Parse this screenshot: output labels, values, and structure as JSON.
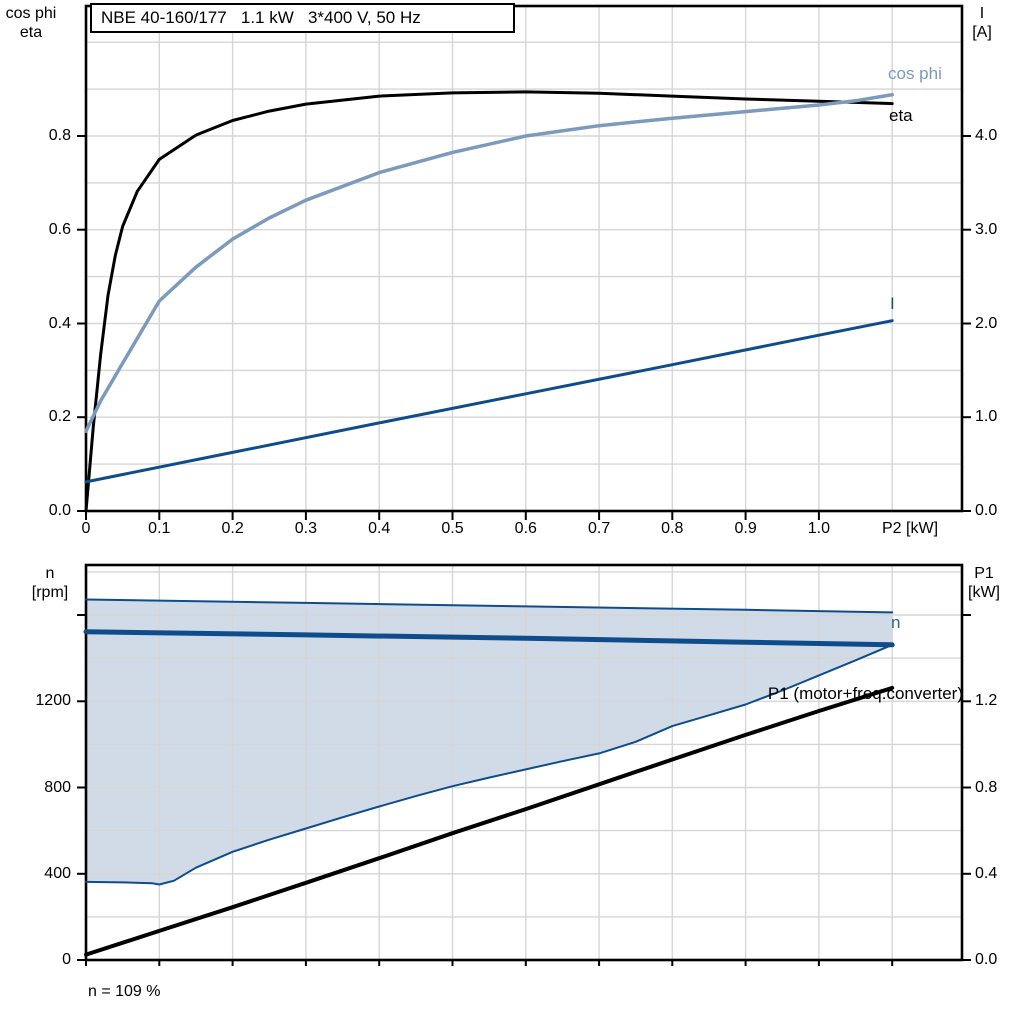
{
  "labels": {
    "left_axis_top_line1": "cos phi",
    "left_axis_top_line2": "eta",
    "right_axis_top_line1": "I",
    "right_axis_top_line2": "[A]",
    "x_axis_unit": "P2 [kW]",
    "bottom_left_line1": "n",
    "bottom_left_line2": "[rpm]",
    "bottom_right_line1": "P1",
    "bottom_right_line2": "[kW]",
    "curve_cos_phi": "cos phi",
    "curve_eta": "eta",
    "curve_I": "I",
    "curve_n": "n",
    "curve_p1": "P1 (motor+freq.converter)",
    "annotation": "n = 109 %"
  },
  "chart_data": [
    {
      "id": "motor",
      "type": "line",
      "title": "NBE 40-160/177   1.1 kW   3*400 V, 50 Hz",
      "grid_color": "#d6d6d6",
      "frame_color": "#000000",
      "x_axis": {
        "label": "P2 [kW]",
        "min": 0,
        "max": 1.1952,
        "grid_step": 0.1,
        "grid_until": 1.1,
        "ticks": [
          [
            0,
            "0"
          ],
          [
            0.1,
            "0.1"
          ],
          [
            0.2,
            "0.2"
          ],
          [
            0.3,
            "0.3"
          ],
          [
            0.4,
            "0.4"
          ],
          [
            0.5,
            "0.5"
          ],
          [
            0.6,
            "0.6"
          ],
          [
            0.7,
            "0.7"
          ],
          [
            0.8,
            "0.8"
          ],
          [
            0.9,
            "0.9"
          ],
          [
            1.0,
            "1.0"
          ]
        ]
      },
      "y_left": {
        "label": "cos phi / eta",
        "min": 0,
        "max": 1.0773,
        "grid_step": 0.1,
        "grid_until": 1.0,
        "ticks": [
          [
            0,
            "0.0"
          ],
          [
            0.2,
            "0.2"
          ],
          [
            0.4,
            "0.4"
          ],
          [
            0.6,
            "0.6"
          ],
          [
            0.8,
            "0.8"
          ]
        ],
        "extra_ticks": []
      },
      "y_right": {
        "label": "I [A]",
        "min": 0,
        "max": 5.3865,
        "ticks": [
          [
            0,
            "0.0"
          ],
          [
            1,
            "1.0"
          ],
          [
            2,
            "2.0"
          ],
          [
            3,
            "3.0"
          ],
          [
            4,
            "4.0"
          ]
        ],
        "extra_ticks": []
      },
      "series": [
        {
          "name": "eta",
          "axis": "left",
          "color": "#000000",
          "width": 3,
          "points": [
            [
              0,
              0
            ],
            [
              0.01,
              0.18
            ],
            [
              0.02,
              0.335
            ],
            [
              0.03,
              0.46
            ],
            [
              0.04,
              0.545
            ],
            [
              0.05,
              0.607
            ],
            [
              0.07,
              0.682
            ],
            [
              0.1,
              0.75
            ],
            [
              0.15,
              0.802
            ],
            [
              0.2,
              0.833
            ],
            [
              0.25,
              0.853
            ],
            [
              0.3,
              0.868
            ],
            [
              0.4,
              0.885
            ],
            [
              0.5,
              0.892
            ],
            [
              0.6,
              0.894
            ],
            [
              0.7,
              0.891
            ],
            [
              0.8,
              0.885
            ],
            [
              0.9,
              0.879
            ],
            [
              1.0,
              0.874
            ],
            [
              1.1,
              0.869
            ]
          ]
        },
        {
          "name": "cos phi",
          "axis": "left",
          "color": "#7b9abc",
          "width": 3.5,
          "points": [
            [
              0,
              0.17
            ],
            [
              0.02,
              0.235
            ],
            [
              0.05,
              0.315
            ],
            [
              0.1,
              0.448
            ],
            [
              0.15,
              0.52
            ],
            [
              0.2,
              0.58
            ],
            [
              0.25,
              0.625
            ],
            [
              0.3,
              0.663
            ],
            [
              0.4,
              0.722
            ],
            [
              0.5,
              0.765
            ],
            [
              0.6,
              0.8
            ],
            [
              0.7,
              0.822
            ],
            [
              0.8,
              0.838
            ],
            [
              0.9,
              0.852
            ],
            [
              1.0,
              0.866
            ],
            [
              1.05,
              0.875
            ],
            [
              1.1,
              0.888
            ]
          ]
        },
        {
          "name": "I",
          "axis": "right",
          "color": "#0f4c8b",
          "width": 3,
          "points": [
            [
              0,
              0.31
            ],
            [
              0.2,
              0.625
            ],
            [
              0.4,
              0.94
            ],
            [
              0.6,
              1.25
            ],
            [
              0.8,
              1.56
            ],
            [
              1.0,
              1.875
            ],
            [
              1.1,
              2.03
            ]
          ]
        }
      ]
    },
    {
      "id": "speed",
      "type": "line+area",
      "title": "",
      "grid_color": "#d6d6d6",
      "frame_color": "#000000",
      "x_axis": {
        "label": "",
        "min": 0,
        "max": 1.1952,
        "grid_step": 0.1,
        "grid_until": 1.1,
        "ticks": [
          [
            0,
            ""
          ],
          [
            0.1,
            ""
          ],
          [
            0.2,
            ""
          ],
          [
            0.3,
            ""
          ],
          [
            0.4,
            ""
          ],
          [
            0.5,
            ""
          ],
          [
            0.6,
            ""
          ],
          [
            0.7,
            ""
          ],
          [
            0.8,
            ""
          ],
          [
            0.9,
            ""
          ],
          [
            1.0,
            ""
          ],
          [
            1.1,
            ""
          ]
        ]
      },
      "y_left": {
        "label": "n [rpm]",
        "min": 0,
        "max": 1832,
        "grid_step": 200,
        "grid_until": 1800,
        "ticks": [
          [
            0,
            "0"
          ],
          [
            400,
            "400"
          ],
          [
            800,
            "800"
          ],
          [
            1200,
            "1200"
          ]
        ],
        "extra_ticks": [
          1600
        ]
      },
      "y_right": {
        "label": "P1 [kW]",
        "min": 0,
        "max": 1.832,
        "ticks": [
          [
            0,
            "0.0"
          ],
          [
            0.4,
            "0.4"
          ],
          [
            0.8,
            "0.8"
          ],
          [
            1.2,
            "1.2"
          ]
        ],
        "extra_ticks": [
          1.6
        ]
      },
      "area": {
        "name": "speed range",
        "fill": "rgba(196,210,225,0.8)",
        "upper": "n max",
        "lower": "n min"
      },
      "annotation": "n = 109 %",
      "series": [
        {
          "name": "n max",
          "axis": "left",
          "color": "#0f4c8b",
          "width": 2,
          "points": [
            [
              0,
              1672
            ],
            [
              0.3,
              1656
            ],
            [
              0.6,
              1640
            ],
            [
              0.9,
              1624
            ],
            [
              1.1,
              1612
            ]
          ]
        },
        {
          "name": "n min",
          "axis": "left",
          "color": "#0f4c8b",
          "width": 2,
          "points": [
            [
              0,
              362
            ],
            [
              0.05,
              360
            ],
            [
              0.09,
              356
            ],
            [
              0.1,
              350
            ],
            [
              0.12,
              368
            ],
            [
              0.15,
              428
            ],
            [
              0.2,
              502
            ],
            [
              0.25,
              558
            ],
            [
              0.3,
              610
            ],
            [
              0.35,
              662
            ],
            [
              0.4,
              712
            ],
            [
              0.45,
              760
            ],
            [
              0.5,
              806
            ],
            [
              0.55,
              846
            ],
            [
              0.6,
              884
            ],
            [
              0.65,
              922
            ],
            [
              0.7,
              958
            ],
            [
              0.75,
              1012
            ],
            [
              0.8,
              1085
            ],
            [
              0.85,
              1135
            ],
            [
              0.9,
              1185
            ],
            [
              0.95,
              1250
            ],
            [
              1.0,
              1320
            ],
            [
              1.05,
              1390
            ],
            [
              1.1,
              1462
            ]
          ]
        },
        {
          "name": "n",
          "axis": "left",
          "color": "#0f4c8b",
          "width": 5,
          "points": [
            [
              0,
              1522
            ],
            [
              0.3,
              1508
            ],
            [
              0.6,
              1492
            ],
            [
              0.9,
              1474
            ],
            [
              1.1,
              1462
            ]
          ]
        },
        {
          "name": "P1 (motor+freq.converter)",
          "axis": "right",
          "color": "#000000",
          "width": 4,
          "points": [
            [
              0,
              0.025
            ],
            [
              0.1,
              0.135
            ],
            [
              0.2,
              0.245
            ],
            [
              0.3,
              0.358
            ],
            [
              0.4,
              0.472
            ],
            [
              0.5,
              0.588
            ],
            [
              0.6,
              0.7
            ],
            [
              0.7,
              0.815
            ],
            [
              0.8,
              0.93
            ],
            [
              0.9,
              1.044
            ],
            [
              1.0,
              1.155
            ],
            [
              1.1,
              1.262
            ]
          ]
        }
      ]
    }
  ]
}
